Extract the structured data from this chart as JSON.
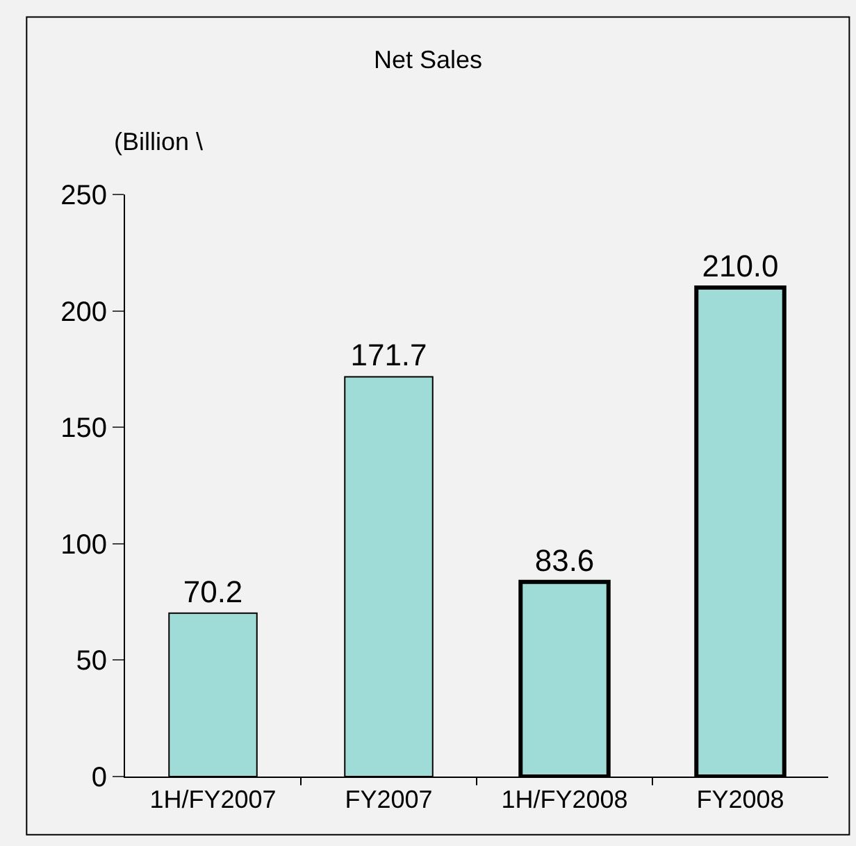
{
  "chart_data": {
    "type": "bar",
    "title": "Net Sales",
    "ylabel": "(Billion \\",
    "categories": [
      "1H/FY2007",
      "FY2007",
      "1H/FY2008",
      "FY2008"
    ],
    "values": [
      70.2,
      171.7,
      83.6,
      210.0
    ],
    "value_labels": [
      "70.2",
      "171.7",
      "83.6",
      "210.0"
    ],
    "color": "#9fdcd8",
    "ylim": [
      0,
      250
    ],
    "yticks": [
      0,
      50,
      100,
      150,
      200,
      250
    ],
    "grid": false,
    "legend": false
  }
}
